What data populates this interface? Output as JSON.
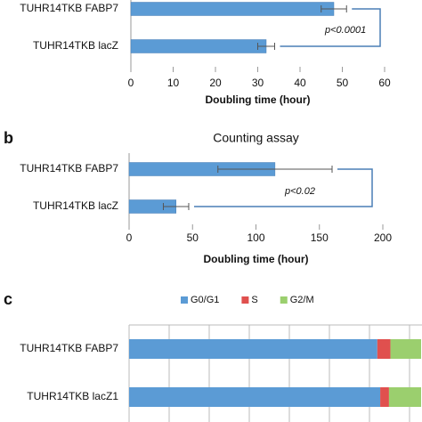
{
  "chart_data": [
    {
      "type": "hbar_error",
      "categories": [
        "TUHR14TKB FABP7",
        "TUHR14TKB lacZ"
      ],
      "values": [
        48,
        32
      ],
      "errors": [
        3,
        2
      ],
      "color": "#5b9bd5",
      "xlim": [
        0,
        60
      ],
      "xticks": [
        0,
        10,
        20,
        30,
        40,
        50,
        60
      ],
      "x_label": "Doubling time (hour)",
      "annotation": "p<0.0001"
    },
    {
      "type": "hbar_error",
      "label": "b",
      "title": "Counting assay",
      "categories": [
        "TUHR14TKB FABP7",
        "TUHR14TKB lacZ"
      ],
      "values": [
        115,
        37
      ],
      "errors": [
        45,
        10
      ],
      "color": "#5b9bd5",
      "xlim": [
        0,
        200
      ],
      "xticks": [
        0,
        50,
        100,
        150,
        200
      ],
      "x_label": "Doubling time (hour)",
      "annotation": "p<0.02"
    },
    {
      "type": "stacked_hbar",
      "label": "c",
      "categories": [
        "TUHR14TKB FABP7",
        "TUHR14TKB lacZ1"
      ],
      "xlim": [
        0,
        100
      ],
      "series": [
        {
          "name": "G0/G1",
          "color": "#5b9bd5",
          "values": [
            85,
            86
          ]
        },
        {
          "name": "S",
          "color": "#e0504e",
          "values": [
            4.5,
            3
          ]
        },
        {
          "name": "G2/M",
          "color": "#9bcf6e",
          "values": [
            10.5,
            11
          ]
        }
      ]
    }
  ]
}
